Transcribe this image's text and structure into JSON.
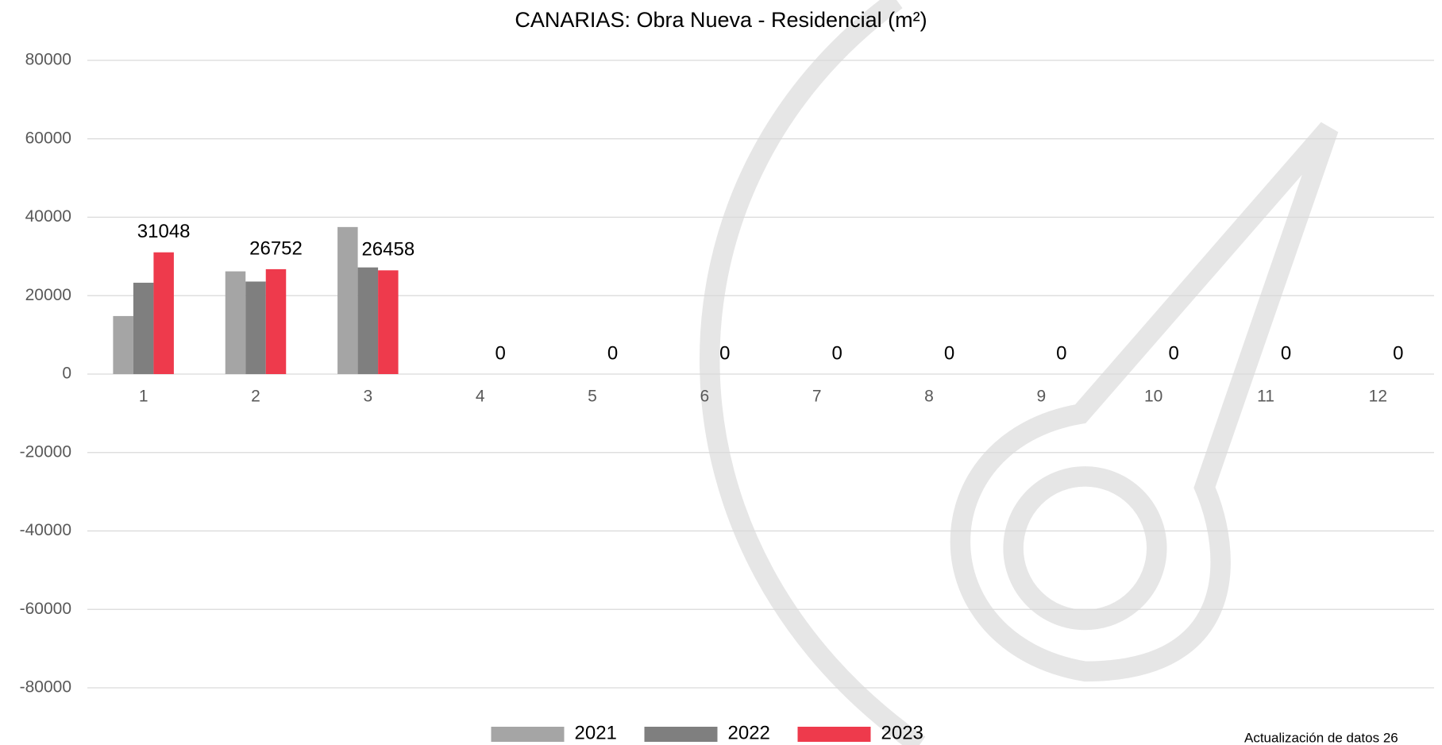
{
  "chart_data": {
    "type": "bar",
    "title": "CANARIAS: Obra Nueva - Residencial (m²)",
    "categories": [
      "1",
      "2",
      "3",
      "4",
      "5",
      "6",
      "7",
      "8",
      "9",
      "10",
      "11",
      "12"
    ],
    "series": [
      {
        "name": "2021",
        "color": "#a5a5a5",
        "values": [
          14800,
          26200,
          37500,
          null,
          null,
          null,
          null,
          null,
          null,
          null,
          null,
          null
        ]
      },
      {
        "name": "2022",
        "color": "#7f7f7f",
        "values": [
          23300,
          23600,
          27200,
          null,
          null,
          null,
          null,
          null,
          null,
          null,
          null,
          null
        ]
      },
      {
        "name": "2023",
        "color": "#ee3a4c",
        "values": [
          31048,
          26752,
          26458,
          0,
          0,
          0,
          0,
          0,
          0,
          0,
          0,
          0
        ],
        "data_labels": true
      }
    ],
    "ylim": [
      -80000,
      80000
    ],
    "yticks": [
      -80000,
      -60000,
      -40000,
      -20000,
      0,
      20000,
      40000,
      60000,
      80000
    ],
    "grid": true,
    "legend": "bottom",
    "footnote": "Actualización de datos 26"
  }
}
